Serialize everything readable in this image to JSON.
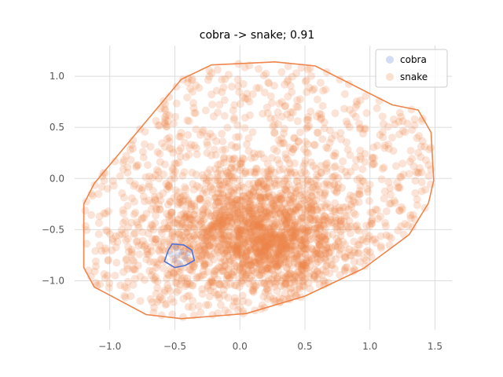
{
  "chart_data": {
    "type": "scatter",
    "title": "cobra -> snake; 0.91",
    "xlabel": "",
    "ylabel": "",
    "xlim": [
      -1.27,
      1.63
    ],
    "ylim": [
      -1.48,
      1.3
    ],
    "x_ticks": [
      -1.0,
      -0.5,
      0.0,
      0.5,
      1.0,
      1.5
    ],
    "x_tick_labels": [
      "−1.0",
      "−0.5",
      "0.0",
      "0.5",
      "1.0",
      "1.5"
    ],
    "y_ticks": [
      -1.0,
      -0.5,
      0.0,
      0.5,
      1.0
    ],
    "y_tick_labels": [
      "−1.0",
      "−0.5",
      "0.0",
      "0.5",
      "1.0"
    ],
    "grid": true,
    "legend_position": "top-right",
    "series": [
      {
        "name": "cobra",
        "color": "#4C72D9",
        "hull": [
          [
            -0.52,
            -0.64
          ],
          [
            -0.43,
            -0.65
          ],
          [
            -0.37,
            -0.7
          ],
          [
            -0.35,
            -0.8
          ],
          [
            -0.42,
            -0.85
          ],
          [
            -0.5,
            -0.87
          ],
          [
            -0.58,
            -0.81
          ],
          [
            -0.55,
            -0.7
          ]
        ],
        "points": [
          [
            -0.48,
            -0.75
          ],
          [
            -0.45,
            -0.72
          ],
          [
            -0.5,
            -0.8
          ],
          [
            -0.42,
            -0.78
          ],
          [
            -0.53,
            -0.74
          ],
          [
            -0.46,
            -0.83
          ],
          [
            -0.4,
            -0.73
          ],
          [
            -0.49,
            -0.68
          ]
        ]
      },
      {
        "name": "snake",
        "color": "#EE854A",
        "hull": [
          [
            -1.12,
            -0.05
          ],
          [
            -0.45,
            0.97
          ],
          [
            -0.22,
            1.11
          ],
          [
            0.27,
            1.14
          ],
          [
            0.58,
            1.1
          ],
          [
            1.17,
            0.72
          ],
          [
            1.37,
            0.67
          ],
          [
            1.47,
            0.45
          ],
          [
            1.49,
            -0.02
          ],
          [
            1.45,
            -0.24
          ],
          [
            1.3,
            -0.55
          ],
          [
            0.95,
            -0.88
          ],
          [
            0.5,
            -1.15
          ],
          [
            0.05,
            -1.32
          ],
          [
            -0.45,
            -1.37
          ],
          [
            -0.72,
            -1.33
          ],
          [
            -1.12,
            -1.06
          ],
          [
            -1.2,
            -0.87
          ],
          [
            -1.2,
            -0.25
          ]
        ]
      }
    ]
  }
}
